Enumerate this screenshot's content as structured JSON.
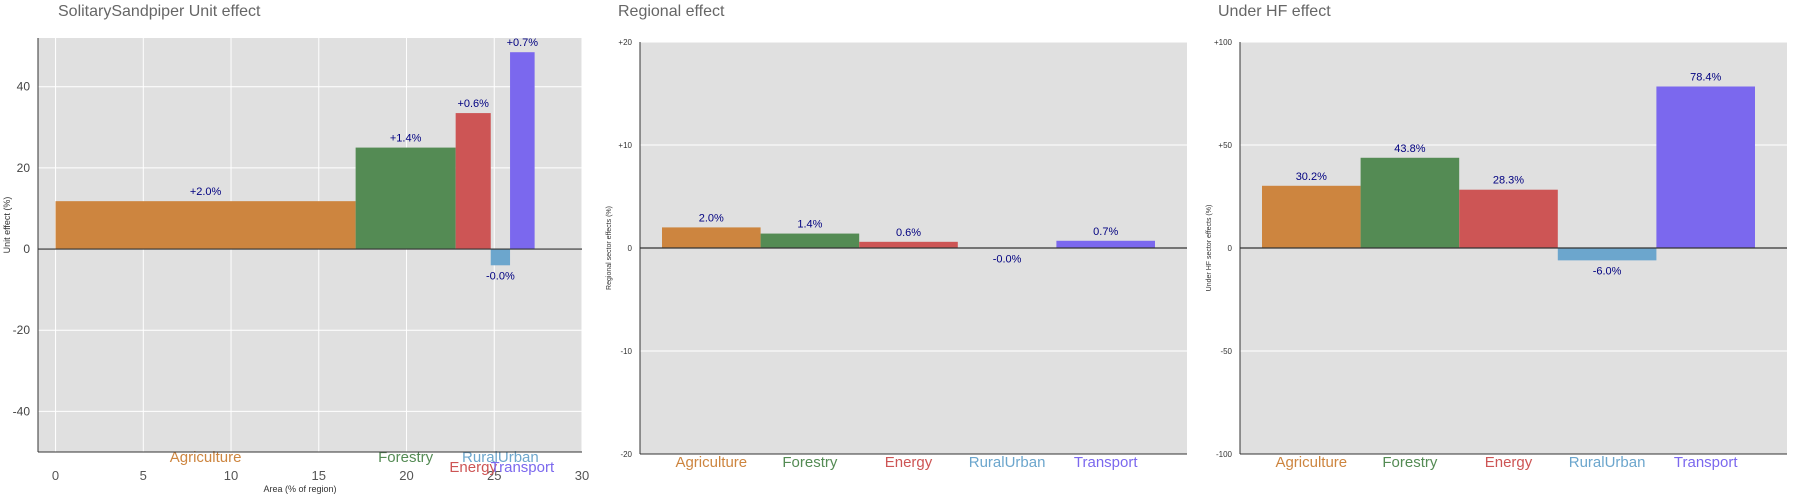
{
  "colors": {
    "Agriculture": "#cd853f",
    "Forestry": "#548b54",
    "Energy": "#cd5555",
    "RuralUrban": "#6ca6cd",
    "Transport": "#7b68ee",
    "panel_bg": "#e0e0e0",
    "label_text": "#000080"
  },
  "chart_data": [
    {
      "type": "bar",
      "title": "SolitarySandpiper Unit effect",
      "xlabel": "Area (% of region)",
      "ylabel": "Unit effect (%)",
      "xlim": [
        -1,
        30
      ],
      "ylim": [
        -50,
        52
      ],
      "x_ticks": [
        0,
        5,
        10,
        15,
        20,
        25,
        30
      ],
      "y_ticks": [
        40,
        20,
        0,
        -20,
        -40
      ],
      "grid": true,
      "variable_width": true,
      "categories": [
        "Agriculture",
        "Forestry",
        "Energy",
        "RuralUrban",
        "Transport"
      ],
      "area": [
        17.1,
        5.7,
        2.0,
        1.1,
        1.4
      ],
      "values": [
        11.8,
        25.0,
        33.5,
        -4.0,
        48.5
      ],
      "labels": [
        "+2.0%",
        "+1.4%",
        "+0.6%",
        "-0.0%",
        "+0.7%"
      ]
    },
    {
      "type": "bar",
      "title": "Regional effect",
      "xlabel": "",
      "ylabel": "Regional sector effects (%)",
      "ylim": [
        -20,
        20
      ],
      "y_ticks": [
        20,
        10,
        0,
        -10,
        -20
      ],
      "y_tick_labels": [
        "+20",
        "+10",
        "0",
        "-10",
        "-20"
      ],
      "grid": true,
      "categories": [
        "Agriculture",
        "Forestry",
        "Energy",
        "RuralUrban",
        "Transport"
      ],
      "values": [
        2.0,
        1.4,
        0.6,
        -0.03,
        0.7
      ],
      "labels": [
        "2.0%",
        "1.4%",
        "0.6%",
        "-0.0%",
        "0.7%"
      ]
    },
    {
      "type": "bar",
      "title": "Under HF effect",
      "xlabel": "",
      "ylabel": "Under HF sector effects (%)",
      "ylim": [
        -100,
        100
      ],
      "y_ticks": [
        100,
        50,
        0,
        -50,
        -100
      ],
      "y_tick_labels": [
        "+100",
        "+50",
        "0",
        "-50",
        "-100"
      ],
      "grid": true,
      "categories": [
        "Agriculture",
        "Forestry",
        "Energy",
        "RuralUrban",
        "Transport"
      ],
      "values": [
        30.2,
        43.8,
        28.3,
        -6.0,
        78.4
      ],
      "labels": [
        "30.2%",
        "43.8%",
        "28.3%",
        "-6.0%",
        "78.4%"
      ]
    }
  ]
}
